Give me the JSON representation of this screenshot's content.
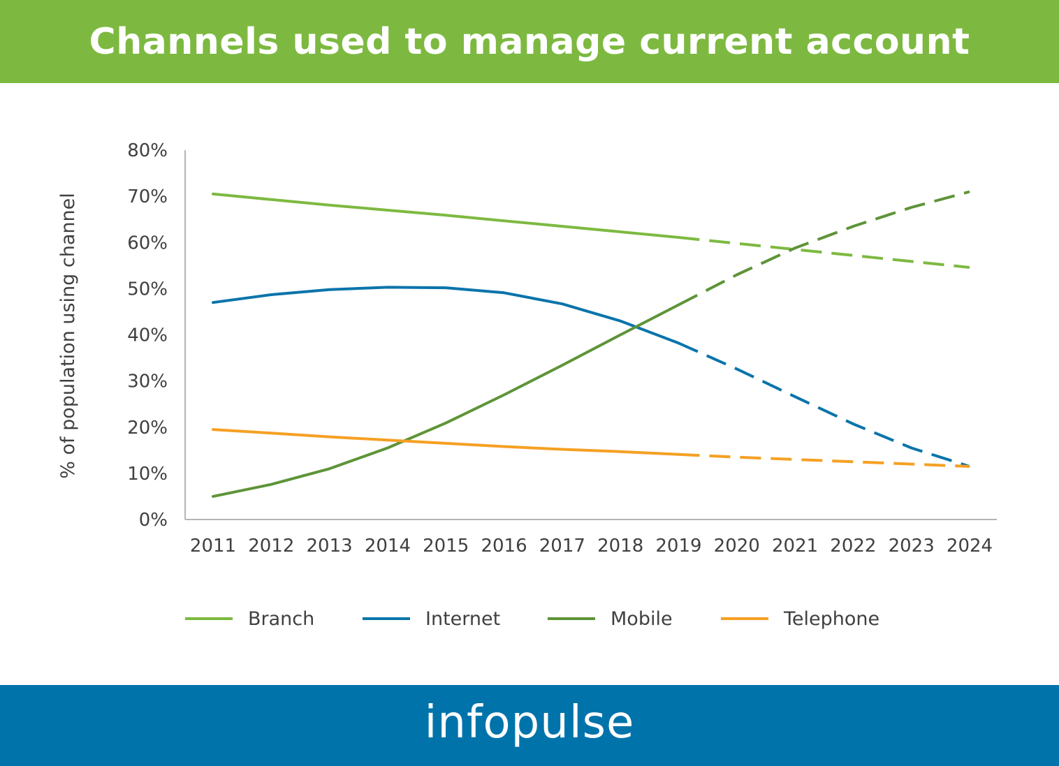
{
  "header": {
    "title": "Channels used to manage current account"
  },
  "footer": {
    "logo_text": "infopulse"
  },
  "colors": {
    "header_bg": "#7db940",
    "footer_bg": "#0074aa",
    "branch": "#7db940",
    "internet": "#0a74aa",
    "mobile": "#5e9438",
    "telephone": "#f5a023",
    "axis": "#b5b5b5",
    "text": "#404040"
  },
  "chart_data": {
    "type": "line",
    "title": "Channels used to manage current account",
    "xlabel": "",
    "ylabel": "% of population using channel",
    "x": [
      2011,
      2012,
      2013,
      2014,
      2015,
      2016,
      2017,
      2018,
      2019,
      2020,
      2021,
      2022,
      2023,
      2024
    ],
    "x_tick_labels": [
      "2011",
      "2012",
      "2013",
      "2014",
      "2015",
      "2016",
      "2017",
      "2018",
      "2019",
      "2020",
      "2021",
      "2022",
      "2023",
      "2024"
    ],
    "ylim": [
      0,
      80
    ],
    "y_ticks": [
      0,
      10,
      20,
      30,
      40,
      50,
      60,
      70,
      80
    ],
    "y_tick_labels": [
      "0%",
      "10%",
      "20%",
      "30%",
      "40%",
      "50%",
      "60%",
      "70%",
      "80%"
    ],
    "grid": false,
    "legend_position": "bottom",
    "projection_start": 2019,
    "series": [
      {
        "name": "Branch",
        "color_key": "branch",
        "values": [
          70.5,
          69.3,
          68.1,
          67.0,
          65.9,
          64.7,
          63.5,
          62.3,
          61.1,
          59.8,
          58.5,
          57.2,
          55.9,
          54.6
        ]
      },
      {
        "name": "Internet",
        "color_key": "internet",
        "values": [
          47.0,
          48.7,
          49.8,
          50.3,
          50.2,
          49.1,
          46.7,
          43.0,
          38.2,
          32.6,
          26.6,
          20.7,
          15.5,
          11.5
        ]
      },
      {
        "name": "Mobile",
        "color_key": "mobile",
        "values": [
          5.0,
          7.6,
          11.0,
          15.5,
          20.9,
          27.0,
          33.4,
          40.0,
          46.5,
          53.0,
          58.8,
          63.5,
          67.6,
          71.0
        ]
      },
      {
        "name": "Telephone",
        "color_key": "telephone",
        "values": [
          19.5,
          18.7,
          17.9,
          17.2,
          16.5,
          15.8,
          15.2,
          14.7,
          14.1,
          13.5,
          13.0,
          12.5,
          12.0,
          11.5
        ]
      }
    ]
  }
}
